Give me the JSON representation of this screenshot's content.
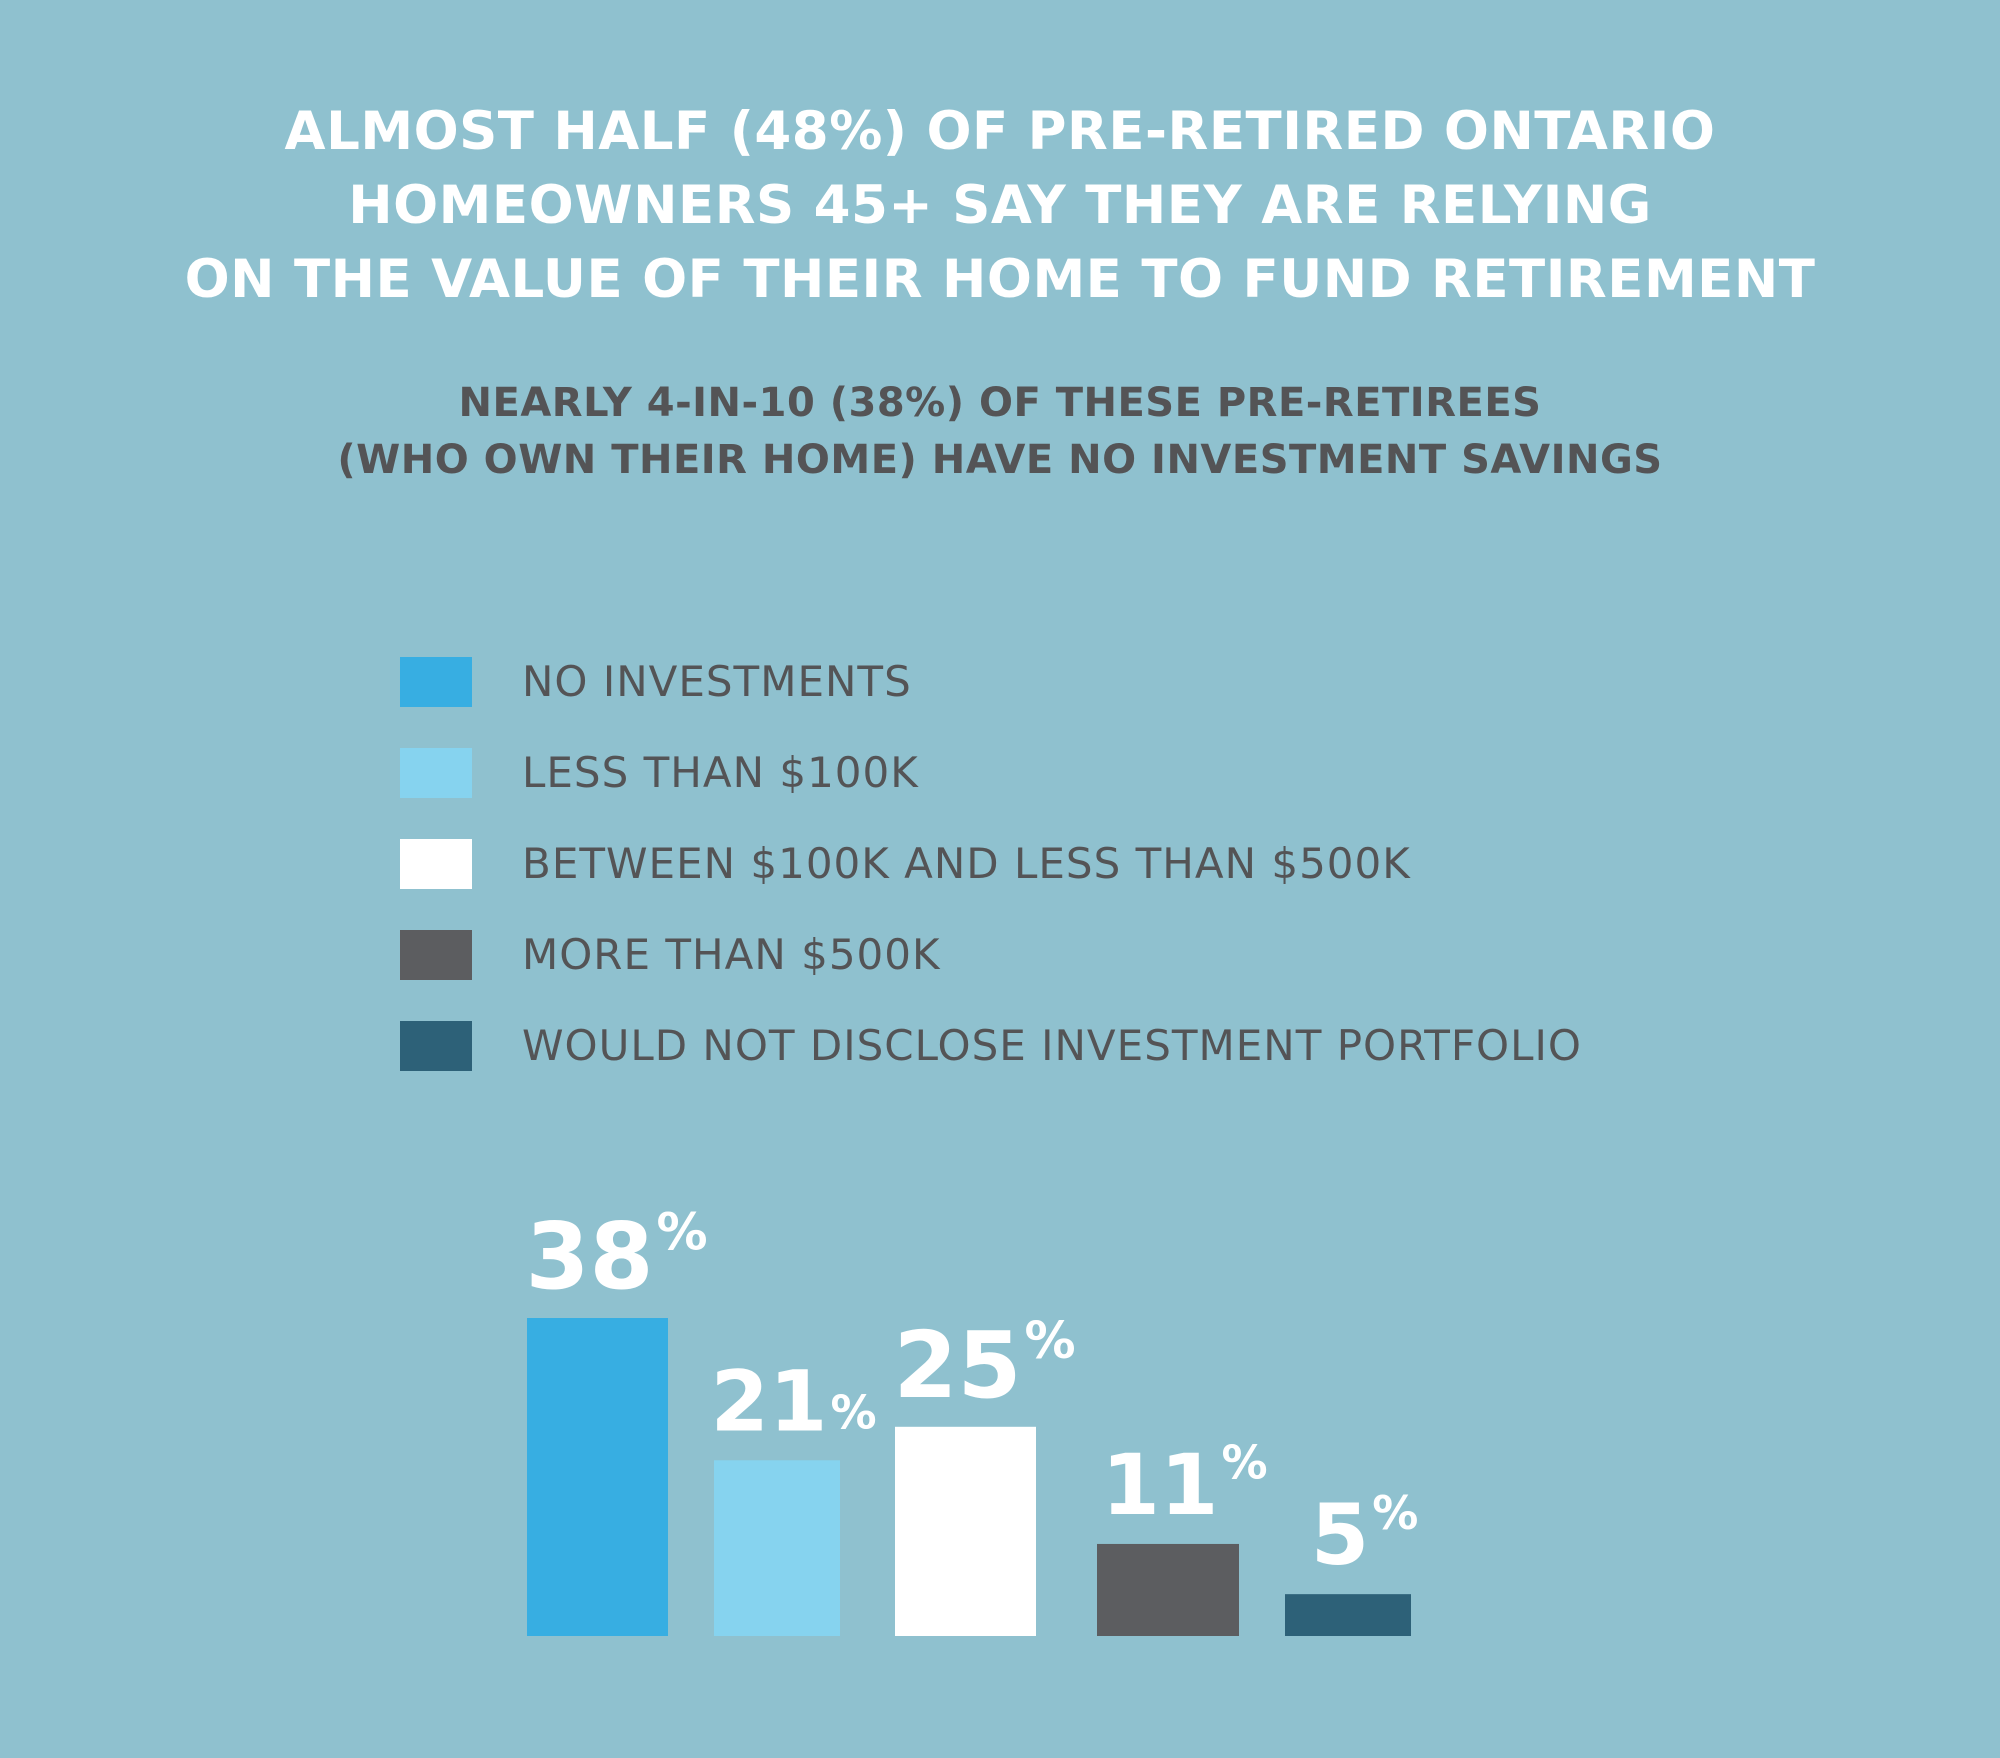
{
  "title_lines": [
    "ALMOST HALF (48%) OF PRE-RETIRED ONTARIO",
    "HOMEOWNERS 45+ SAY THEY ARE RELYING",
    "ON THE VALUE OF THEIR HOME TO FUND RETIREMENT"
  ],
  "subtitle_lines": [
    "NEARLY 4-IN-10 (38%) OF THESE PRE-RETIREES",
    "(WHO OWN THEIR HOME) HAVE NO INVESTMENT SAVINGS"
  ],
  "colors": {
    "background": "#8fc1cf",
    "no_investments": "#37aee2",
    "less_than_100k": "#86d3ef",
    "between_100k_500k": "#ffffff",
    "more_than_500k": "#5c5d60",
    "not_disclosed": "#2d6178"
  },
  "chart_data": {
    "type": "bar",
    "title": "ALMOST HALF (48%) OF PRE-RETIRED ONTARIO HOMEOWNERS 45+ SAY THEY ARE RELYING ON THE VALUE OF THEIR HOME TO FUND RETIREMENT",
    "subtitle": "NEARLY 4-IN-10 (38%) OF THESE PRE-RETIREES (WHO OWN THEIR HOME) HAVE NO INVESTMENT SAVINGS",
    "categories": [
      "NO INVESTMENTS",
      "LESS THAN $100K",
      "BETWEEN $100K AND LESS THAN $500K",
      "MORE THAN $500K",
      "WOULD NOT DISCLOSE INVESTMENT PORTFOLIO"
    ],
    "values": [
      38,
      21,
      25,
      11,
      5
    ],
    "value_suffix": "%",
    "data_labels": [
      "38",
      "21",
      "25",
      "11",
      "5"
    ],
    "colors": [
      "#37aee2",
      "#86d3ef",
      "#ffffff",
      "#5c5d60",
      "#2d6178"
    ],
    "xlabel": "",
    "ylabel": "",
    "ylim": [
      0,
      38
    ],
    "grid": false,
    "legend": "top",
    "axes_visible": false
  }
}
